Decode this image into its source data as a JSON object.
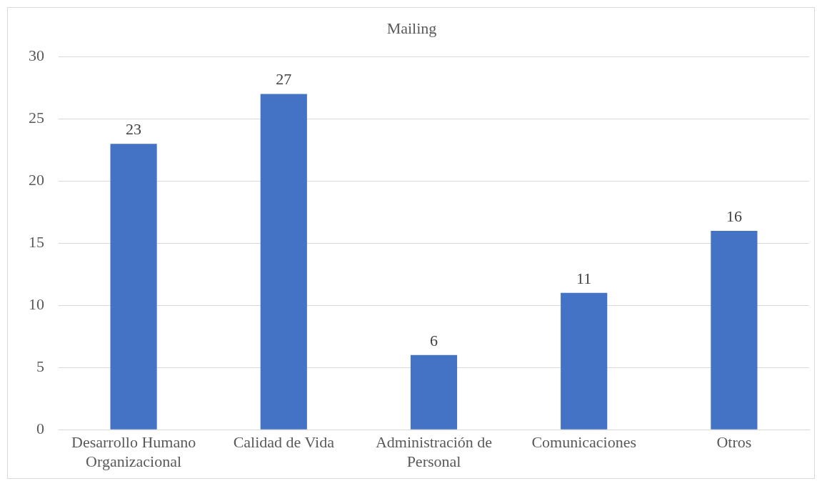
{
  "chart_data": {
    "type": "bar",
    "title": "Mailing",
    "categories": [
      "Desarrollo Humano Organizacional",
      "Calidad de Vida",
      "Administración de Personal",
      "Comunicaciones",
      "Otros"
    ],
    "values": [
      23,
      27,
      6,
      11,
      16
    ],
    "color": "#4472c4",
    "ylim": [
      0,
      30
    ],
    "yticks": [
      0,
      5,
      10,
      15,
      20,
      25,
      30
    ],
    "grid": "y",
    "data_labels": true,
    "legend": false
  }
}
